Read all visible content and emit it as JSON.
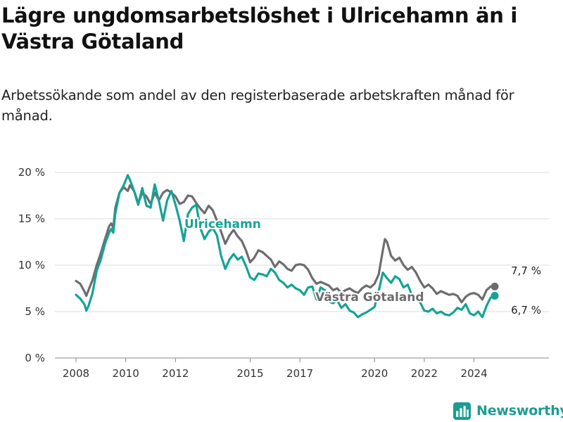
{
  "title": "Lägre ungdomsarbetslöshet i Ulricehamn än i Västra Götaland",
  "subtitle": "Arbetssökande som andel av den registerbaserade arbetskraften månad för månad.",
  "brand": {
    "name": "Newsworthy",
    "icon": "newsworthy-logo-icon"
  },
  "colors": {
    "ulricehamn": "#16a394",
    "vastra_gotaland": "#6d6d70",
    "grid": "#dcdcdc"
  },
  "chart_data": {
    "type": "line",
    "y_unit": "%",
    "ylim": [
      0,
      20
    ],
    "y_ticks": [
      "0 %",
      "5 %",
      "10 %",
      "15 %",
      "20 %"
    ],
    "x_ticks": [
      "2008",
      "2010",
      "2012",
      "2015",
      "2017",
      "2020",
      "2022",
      "2024"
    ],
    "grid": "horizontal",
    "legend": "inline labels on lines",
    "series": [
      {
        "name": "Västra Götaland",
        "color": "#6d6d70",
        "end_label": "7,7 %",
        "points": [
          [
            "2008-01",
            8.3
          ],
          [
            "2008-03",
            8.0
          ],
          [
            "2008-05",
            7.2
          ],
          [
            "2008-06",
            6.7
          ],
          [
            "2008-07",
            7.3
          ],
          [
            "2008-09",
            8.4
          ],
          [
            "2008-11",
            10.0
          ],
          [
            "2009-01",
            11.3
          ],
          [
            "2009-03",
            12.8
          ],
          [
            "2009-05",
            14.2
          ],
          [
            "2009-06",
            14.5
          ],
          [
            "2009-07",
            14.0
          ],
          [
            "2009-08",
            16.2
          ],
          [
            "2009-10",
            17.8
          ],
          [
            "2009-12",
            18.4
          ],
          [
            "2010-02",
            18.0
          ],
          [
            "2010-03",
            18.6
          ],
          [
            "2010-05",
            18.0
          ],
          [
            "2010-07",
            16.7
          ],
          [
            "2010-09",
            17.8
          ],
          [
            "2010-11",
            17.4
          ],
          [
            "2011-01",
            16.6
          ],
          [
            "2011-03",
            17.8
          ],
          [
            "2011-05",
            17.0
          ],
          [
            "2011-07",
            17.8
          ],
          [
            "2011-09",
            18.1
          ],
          [
            "2011-11",
            17.8
          ],
          [
            "2012-01",
            17.4
          ],
          [
            "2012-03",
            16.6
          ],
          [
            "2012-05",
            16.8
          ],
          [
            "2012-07",
            17.5
          ],
          [
            "2012-09",
            17.4
          ],
          [
            "2012-11",
            16.7
          ],
          [
            "2013-01",
            16.1
          ],
          [
            "2013-03",
            15.6
          ],
          [
            "2013-05",
            16.4
          ],
          [
            "2013-07",
            15.9
          ],
          [
            "2013-09",
            14.8
          ],
          [
            "2013-11",
            13.6
          ],
          [
            "2014-01",
            12.3
          ],
          [
            "2014-03",
            13.2
          ],
          [
            "2014-05",
            13.8
          ],
          [
            "2014-07",
            13.1
          ],
          [
            "2014-09",
            12.6
          ],
          [
            "2014-11",
            11.6
          ],
          [
            "2015-01",
            10.3
          ],
          [
            "2015-03",
            10.8
          ],
          [
            "2015-05",
            11.6
          ],
          [
            "2015-07",
            11.4
          ],
          [
            "2015-09",
            11.0
          ],
          [
            "2015-11",
            10.6
          ],
          [
            "2016-01",
            9.8
          ],
          [
            "2016-03",
            10.4
          ],
          [
            "2016-05",
            10.1
          ],
          [
            "2016-07",
            9.6
          ],
          [
            "2016-09",
            9.4
          ],
          [
            "2016-11",
            10.0
          ],
          [
            "2017-01",
            10.1
          ],
          [
            "2017-03",
            10.0
          ],
          [
            "2017-05",
            9.5
          ],
          [
            "2017-07",
            8.6
          ],
          [
            "2017-09",
            8.0
          ],
          [
            "2017-11",
            8.2
          ],
          [
            "2018-01",
            8.0
          ],
          [
            "2018-03",
            7.8
          ],
          [
            "2018-05",
            7.3
          ],
          [
            "2018-07",
            7.5
          ],
          [
            "2018-09",
            7.0
          ],
          [
            "2018-11",
            7.3
          ],
          [
            "2019-01",
            7.5
          ],
          [
            "2019-03",
            7.2
          ],
          [
            "2019-05",
            7.0
          ],
          [
            "2019-07",
            7.5
          ],
          [
            "2019-09",
            7.8
          ],
          [
            "2019-11",
            7.6
          ],
          [
            "2020-01",
            8.0
          ],
          [
            "2020-03",
            9.0
          ],
          [
            "2020-05",
            11.6
          ],
          [
            "2020-06",
            12.8
          ],
          [
            "2020-07",
            12.5
          ],
          [
            "2020-09",
            11.0
          ],
          [
            "2020-11",
            10.5
          ],
          [
            "2021-01",
            10.8
          ],
          [
            "2021-03",
            10.0
          ],
          [
            "2021-05",
            9.5
          ],
          [
            "2021-07",
            9.8
          ],
          [
            "2021-09",
            9.2
          ],
          [
            "2021-11",
            8.3
          ],
          [
            "2022-01",
            7.6
          ],
          [
            "2022-03",
            7.9
          ],
          [
            "2022-05",
            7.5
          ],
          [
            "2022-07",
            6.9
          ],
          [
            "2022-09",
            7.2
          ],
          [
            "2022-11",
            7.0
          ],
          [
            "2023-01",
            6.8
          ],
          [
            "2023-03",
            6.9
          ],
          [
            "2023-05",
            6.7
          ],
          [
            "2023-07",
            6.0
          ],
          [
            "2023-09",
            6.6
          ],
          [
            "2023-11",
            6.9
          ],
          [
            "2024-01",
            7.0
          ],
          [
            "2024-03",
            6.8
          ],
          [
            "2024-05",
            6.3
          ],
          [
            "2024-07",
            7.3
          ],
          [
            "2024-09",
            7.7
          ],
          [
            "2024-11",
            7.7
          ]
        ]
      },
      {
        "name": "Ulricehamn",
        "color": "#16a394",
        "end_label": "6,7 %",
        "points": [
          [
            "2008-01",
            6.8
          ],
          [
            "2008-03",
            6.4
          ],
          [
            "2008-05",
            5.8
          ],
          [
            "2008-06",
            5.1
          ],
          [
            "2008-07",
            5.6
          ],
          [
            "2008-09",
            7.0
          ],
          [
            "2008-11",
            9.4
          ],
          [
            "2009-01",
            10.6
          ],
          [
            "2009-03",
            12.3
          ],
          [
            "2009-05",
            13.5
          ],
          [
            "2009-06",
            13.9
          ],
          [
            "2009-07",
            13.5
          ],
          [
            "2009-08",
            15.6
          ],
          [
            "2009-10",
            17.8
          ],
          [
            "2009-12",
            18.6
          ],
          [
            "2010-02",
            19.7
          ],
          [
            "2010-03",
            19.2
          ],
          [
            "2010-05",
            18.0
          ],
          [
            "2010-07",
            16.5
          ],
          [
            "2010-09",
            18.3
          ],
          [
            "2010-11",
            16.4
          ],
          [
            "2011-01",
            16.2
          ],
          [
            "2011-03",
            18.7
          ],
          [
            "2011-05",
            16.9
          ],
          [
            "2011-07",
            14.8
          ],
          [
            "2011-09",
            17.0
          ],
          [
            "2011-11",
            18.0
          ],
          [
            "2012-01",
            16.5
          ],
          [
            "2012-03",
            14.8
          ],
          [
            "2012-05",
            12.6
          ],
          [
            "2012-07",
            15.5
          ],
          [
            "2012-09",
            16.2
          ],
          [
            "2012-11",
            16.5
          ],
          [
            "2013-01",
            14.0
          ],
          [
            "2013-03",
            12.8
          ],
          [
            "2013-05",
            13.6
          ],
          [
            "2013-07",
            14.0
          ],
          [
            "2013-09",
            13.2
          ],
          [
            "2013-11",
            11.0
          ],
          [
            "2014-01",
            9.6
          ],
          [
            "2014-03",
            10.6
          ],
          [
            "2014-05",
            11.2
          ],
          [
            "2014-07",
            10.6
          ],
          [
            "2014-09",
            10.9
          ],
          [
            "2014-11",
            9.9
          ],
          [
            "2015-01",
            8.7
          ],
          [
            "2015-03",
            8.4
          ],
          [
            "2015-05",
            9.1
          ],
          [
            "2015-07",
            9.0
          ],
          [
            "2015-09",
            8.8
          ],
          [
            "2015-11",
            9.6
          ],
          [
            "2016-01",
            9.2
          ],
          [
            "2016-03",
            8.4
          ],
          [
            "2016-05",
            8.1
          ],
          [
            "2016-07",
            7.6
          ],
          [
            "2016-09",
            7.9
          ],
          [
            "2016-11",
            7.5
          ],
          [
            "2017-01",
            7.3
          ],
          [
            "2017-03",
            6.8
          ],
          [
            "2017-05",
            7.6
          ],
          [
            "2017-07",
            7.7
          ],
          [
            "2017-09",
            6.3
          ],
          [
            "2017-11",
            7.6
          ],
          [
            "2018-01",
            7.3
          ],
          [
            "2018-03",
            6.1
          ],
          [
            "2018-05",
            5.9
          ],
          [
            "2018-07",
            6.2
          ],
          [
            "2018-09",
            5.4
          ],
          [
            "2018-11",
            5.8
          ],
          [
            "2019-01",
            5.1
          ],
          [
            "2019-03",
            4.9
          ],
          [
            "2019-05",
            4.4
          ],
          [
            "2019-07",
            4.7
          ],
          [
            "2019-09",
            4.9
          ],
          [
            "2019-11",
            5.2
          ],
          [
            "2020-01",
            5.5
          ],
          [
            "2020-03",
            7.2
          ],
          [
            "2020-05",
            9.2
          ],
          [
            "2020-07",
            8.6
          ],
          [
            "2020-09",
            8.1
          ],
          [
            "2020-11",
            8.8
          ],
          [
            "2021-01",
            8.5
          ],
          [
            "2021-03",
            7.6
          ],
          [
            "2021-05",
            7.9
          ],
          [
            "2021-07",
            6.8
          ],
          [
            "2021-09",
            6.3
          ],
          [
            "2021-11",
            6.0
          ],
          [
            "2022-01",
            5.1
          ],
          [
            "2022-03",
            5.0
          ],
          [
            "2022-05",
            5.3
          ],
          [
            "2022-07",
            4.8
          ],
          [
            "2022-09",
            5.0
          ],
          [
            "2022-11",
            4.7
          ],
          [
            "2023-01",
            4.6
          ],
          [
            "2023-03",
            4.9
          ],
          [
            "2023-05",
            5.4
          ],
          [
            "2023-07",
            5.2
          ],
          [
            "2023-09",
            5.8
          ],
          [
            "2023-11",
            4.8
          ],
          [
            "2024-01",
            4.6
          ],
          [
            "2024-03",
            5.0
          ],
          [
            "2024-05",
            4.4
          ],
          [
            "2024-07",
            5.6
          ],
          [
            "2024-09",
            6.5
          ],
          [
            "2024-11",
            6.7
          ]
        ]
      }
    ]
  }
}
